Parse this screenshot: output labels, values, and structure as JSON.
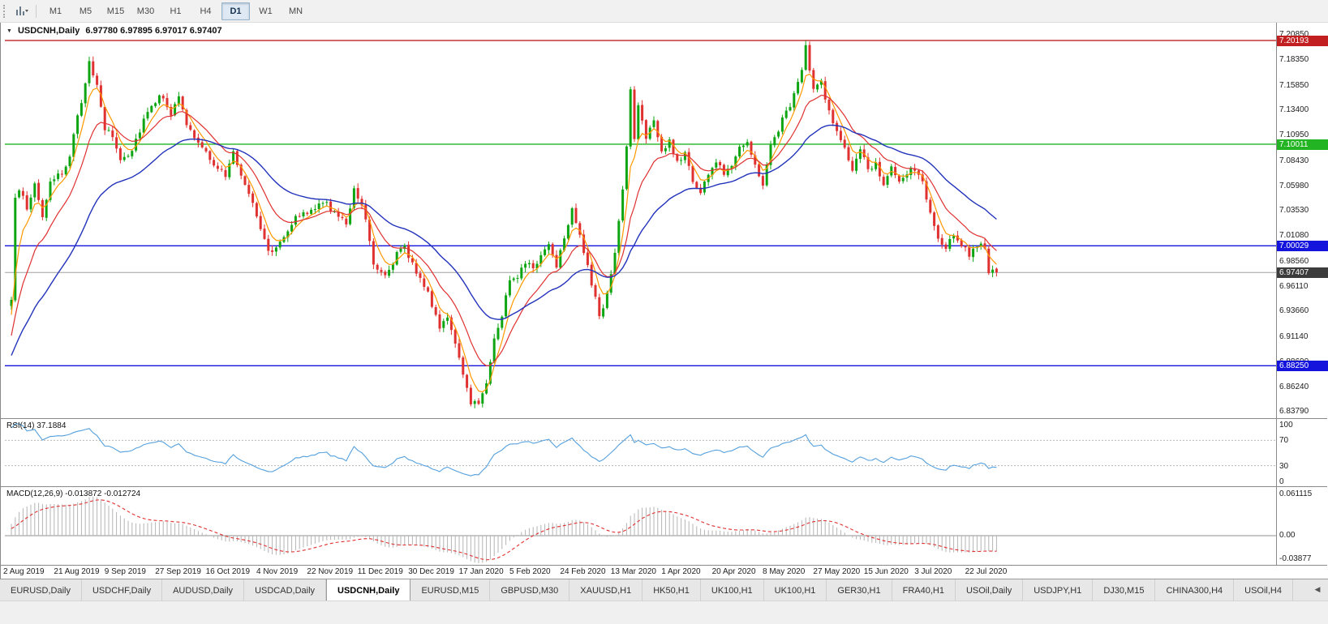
{
  "toolbar": {
    "timeframes": [
      {
        "label": "M1",
        "active": false
      },
      {
        "label": "M5",
        "active": false
      },
      {
        "label": "M15",
        "active": false
      },
      {
        "label": "M30",
        "active": false
      },
      {
        "label": "H1",
        "active": false
      },
      {
        "label": "H4",
        "active": false
      },
      {
        "label": "D1",
        "active": true
      },
      {
        "label": "W1",
        "active": false
      },
      {
        "label": "MN",
        "active": false
      }
    ]
  },
  "chart": {
    "title": "USDCNH,Daily",
    "ohlc": "6.97780 6.97895 6.97017 6.97407",
    "up_color": "#0da512",
    "down_color": "#e03131",
    "ma_fast_color": "#ff9800",
    "ma_mid_color": "#e03131",
    "ma_slow_color": "#2233bb",
    "current_price_line_color": "#a0a0a0",
    "price_axis": [
      "7.20850",
      "7.18350",
      "7.15850",
      "7.13400",
      "7.10950",
      "7.08430",
      "7.05980",
      "7.03530",
      "7.01080",
      "6.98560",
      "6.96110",
      "6.93660",
      "6.91140",
      "6.88690",
      "6.86240",
      "6.83790"
    ],
    "levels": [
      {
        "price": 7.20193,
        "label": "7.20193",
        "color": "#c22020",
        "style": "solid"
      },
      {
        "price": 7.10011,
        "label": "7.10011",
        "color": "#22b422",
        "style": "solid"
      },
      {
        "price": 7.00029,
        "label": "7.00029",
        "color": "#1414dd",
        "style": "solid"
      },
      {
        "price": 6.8825,
        "label": "6.88250",
        "color": "#1414dd",
        "style": "solid"
      },
      {
        "price": 6.97407,
        "label": "6.97407",
        "color": "#3c3c3c",
        "style": "current"
      }
    ],
    "scale_top": 7.217,
    "scale_bottom": 6.831
  },
  "rsi": {
    "label": "RSI(14) 37.1884",
    "value": 37.1884,
    "axis": [
      "100",
      "70",
      "30",
      "0"
    ],
    "levels": [
      70,
      30
    ],
    "line_color": "#55a0dd"
  },
  "macd": {
    "label": "MACD(12,26,9) -0.013872 -0.012724",
    "value": -0.013872,
    "signal": -0.012724,
    "axis_top": "0.061115",
    "axis_zero": "0.00",
    "axis_bottom": "-0.03877",
    "histogram_color": "#b4b4b4",
    "signal_color": "#e03131",
    "zero_line_color": "#909090"
  },
  "date_axis": [
    "2 Aug 2019",
    "21 Aug 2019",
    "9 Sep 2019",
    "27 Sep 2019",
    "16 Oct 2019",
    "4 Nov 2019",
    "22 Nov 2019",
    "11 Dec 2019",
    "30 Dec 2019",
    "17 Jan 2020",
    "5 Feb 2020",
    "24 Feb 2020",
    "13 Mar 2020",
    "1 Apr 2020",
    "20 Apr 2020",
    "8 May 2020",
    "27 May 2020",
    "15 Jun 2020",
    "3 Jul 2020",
    "22 Jul 2020"
  ],
  "tabs": {
    "items": [
      {
        "label": "EURUSD,Daily",
        "active": false
      },
      {
        "label": "USDCHF,Daily",
        "active": false
      },
      {
        "label": "AUDUSD,Daily",
        "active": false
      },
      {
        "label": "USDCAD,Daily",
        "active": false
      },
      {
        "label": "USDCNH,Daily",
        "active": true
      },
      {
        "label": "EURUSD,M15",
        "active": false
      },
      {
        "label": "GBPUSD,M30",
        "active": false
      },
      {
        "label": "XAUUSD,H1",
        "active": false
      },
      {
        "label": "HK50,H1",
        "active": false
      },
      {
        "label": "UK100,H1",
        "active": false
      },
      {
        "label": "UK100,H1",
        "active": false
      },
      {
        "label": "GER30,H1",
        "active": false
      },
      {
        "label": "FRA40,H1",
        "active": false
      },
      {
        "label": "USOil,Daily",
        "active": false
      },
      {
        "label": "USDJPY,H1",
        "active": false
      },
      {
        "label": "DJ30,M15",
        "active": false
      },
      {
        "label": "CHINA300,H4",
        "active": false
      },
      {
        "label": "USOil,H4",
        "active": false
      }
    ],
    "scroll_left_glyph": "◀"
  },
  "chart_data": {
    "type": "candlestick",
    "symbol": "USDCNH",
    "period": "Daily",
    "last_candle": {
      "open": 6.9778,
      "high": 6.97895,
      "low": 6.97017,
      "close": 6.97407
    },
    "num_candles": 254,
    "candles_per_date_tick": 13,
    "horizontal_levels": [
      7.20193,
      7.10011,
      7.00029,
      6.8825
    ],
    "current_price": 6.97407,
    "rsi_period": 14,
    "rsi_last": 37.1884,
    "macd_params": [
      12,
      26,
      9
    ],
    "macd_last": -0.013872,
    "macd_signal_last": -0.012724,
    "close_waypoints": [
      [
        0,
        6.944
      ],
      [
        1,
        7.05
      ],
      [
        2,
        7.058
      ],
      [
        4,
        7.035
      ],
      [
        6,
        7.062
      ],
      [
        8,
        7.03
      ],
      [
        10,
        7.06
      ],
      [
        13,
        7.072
      ],
      [
        15,
        7.09
      ],
      [
        17,
        7.125
      ],
      [
        19,
        7.16
      ],
      [
        20,
        7.185
      ],
      [
        22,
        7.155
      ],
      [
        24,
        7.115
      ],
      [
        26,
        7.108
      ],
      [
        28,
        7.085
      ],
      [
        31,
        7.095
      ],
      [
        34,
        7.125
      ],
      [
        36,
        7.14
      ],
      [
        39,
        7.148
      ],
      [
        41,
        7.13
      ],
      [
        43,
        7.145
      ],
      [
        45,
        7.12
      ],
      [
        48,
        7.1
      ],
      [
        52,
        7.082
      ],
      [
        55,
        7.068
      ],
      [
        57,
        7.092
      ],
      [
        59,
        7.07
      ],
      [
        62,
        7.045
      ],
      [
        65,
        7.005
      ],
      [
        67,
        6.992
      ],
      [
        70,
        7.012
      ],
      [
        73,
        7.028
      ],
      [
        76,
        7.032
      ],
      [
        78,
        7.038
      ],
      [
        81,
        7.042
      ],
      [
        84,
        7.028
      ],
      [
        86,
        7.022
      ],
      [
        88,
        7.058
      ],
      [
        90,
        7.04
      ],
      [
        91,
        7.028
      ],
      [
        93,
        6.984
      ],
      [
        96,
        6.972
      ],
      [
        99,
        6.992
      ],
      [
        101,
        6.998
      ],
      [
        104,
        6.976
      ],
      [
        106,
        6.962
      ],
      [
        108,
        6.942
      ],
      [
        110,
        6.922
      ],
      [
        112,
        6.932
      ],
      [
        114,
        6.902
      ],
      [
        116,
        6.872
      ],
      [
        118,
        6.848
      ],
      [
        120,
        6.845
      ],
      [
        122,
        6.868
      ],
      [
        124,
        6.908
      ],
      [
        126,
        6.932
      ],
      [
        128,
        6.968
      ],
      [
        130,
        6.972
      ],
      [
        132,
        6.986
      ],
      [
        134,
        6.976
      ],
      [
        136,
        6.992
      ],
      [
        138,
        7.002
      ],
      [
        140,
        6.982
      ],
      [
        142,
        7.01
      ],
      [
        144,
        7.038
      ],
      [
        146,
        7.012
      ],
      [
        148,
        6.978
      ],
      [
        151,
        6.932
      ],
      [
        153,
        6.952
      ],
      [
        155,
        6.992
      ],
      [
        156,
        7.022
      ],
      [
        158,
        7.095
      ],
      [
        159,
        7.155
      ],
      [
        160,
        7.105
      ],
      [
        161,
        7.138
      ],
      [
        163,
        7.108
      ],
      [
        165,
        7.122
      ],
      [
        167,
        7.092
      ],
      [
        169,
        7.102
      ],
      [
        171,
        7.082
      ],
      [
        173,
        7.092
      ],
      [
        175,
        7.065
      ],
      [
        177,
        7.052
      ],
      [
        179,
        7.072
      ],
      [
        181,
        7.082
      ],
      [
        183,
        7.072
      ],
      [
        185,
        7.082
      ],
      [
        187,
        7.098
      ],
      [
        189,
        7.105
      ],
      [
        191,
        7.078
      ],
      [
        193,
        7.062
      ],
      [
        195,
        7.098
      ],
      [
        197,
        7.115
      ],
      [
        199,
        7.132
      ],
      [
        201,
        7.148
      ],
      [
        203,
        7.172
      ],
      [
        204,
        7.195
      ],
      [
        206,
        7.152
      ],
      [
        208,
        7.162
      ],
      [
        210,
        7.132
      ],
      [
        212,
        7.112
      ],
      [
        214,
        7.095
      ],
      [
        216,
        7.075
      ],
      [
        218,
        7.092
      ],
      [
        220,
        7.076
      ],
      [
        222,
        7.082
      ],
      [
        224,
        7.062
      ],
      [
        226,
        7.076
      ],
      [
        228,
        7.06
      ],
      [
        230,
        7.072
      ],
      [
        232,
        7.076
      ],
      [
        234,
        7.062
      ],
      [
        236,
        7.032
      ],
      [
        238,
        7.006
      ],
      [
        240,
        6.996
      ],
      [
        242,
        7.012
      ],
      [
        244,
        7.002
      ],
      [
        246,
        6.992
      ],
      [
        248,
        7.002
      ],
      [
        250,
        6.996
      ],
      [
        251,
        6.97
      ],
      [
        252,
        6.986
      ],
      [
        253,
        6.974
      ]
    ]
  }
}
